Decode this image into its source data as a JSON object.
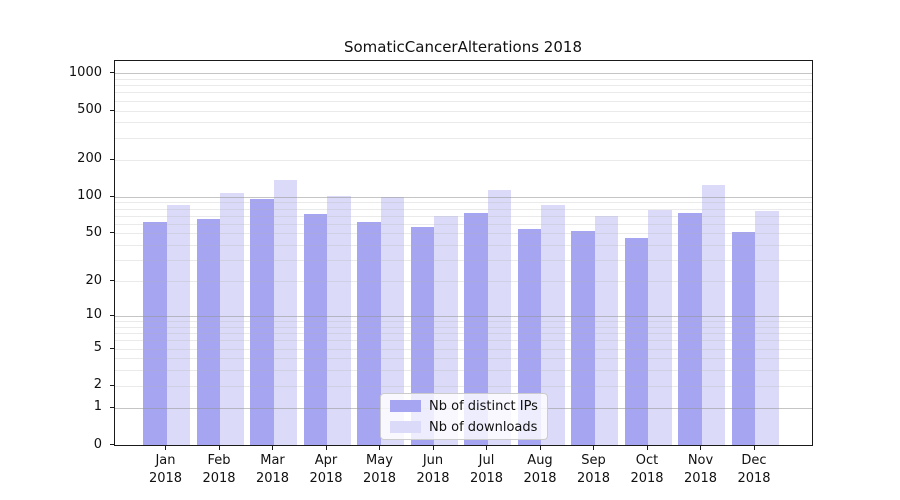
{
  "chart_data": {
    "type": "bar",
    "title": "SomaticCancerAlterations 2018",
    "categories": [
      "Jan",
      "Feb",
      "Mar",
      "Apr",
      "May",
      "Jun",
      "Jul",
      "Aug",
      "Sep",
      "Oct",
      "Nov",
      "Dec"
    ],
    "xtick_year": "2018",
    "series": [
      {
        "name": "Nb of distinct IPs",
        "color": "#a5a5f2",
        "values": [
          62,
          66,
          96,
          72,
          62,
          56,
          73,
          54,
          52,
          46,
          73,
          51
        ]
      },
      {
        "name": "Nb of downloads",
        "color": "#dbdbf9",
        "values": [
          86,
          108,
          136,
          101,
          100,
          70,
          113,
          85,
          70,
          78,
          125,
          76
        ]
      }
    ],
    "yscale": "log1p",
    "ylim": [
      0,
      1268
    ],
    "yticks": [
      0,
      1,
      2,
      5,
      10,
      20,
      50,
      100,
      200,
      500,
      1000
    ],
    "grid": {
      "major": [
        1,
        10,
        100,
        1000
      ],
      "minor": [
        2,
        3,
        4,
        5,
        6,
        7,
        8,
        9,
        20,
        30,
        40,
        50,
        60,
        70,
        80,
        90,
        200,
        300,
        400,
        500,
        600,
        700,
        800,
        900
      ]
    },
    "legend": {
      "position": "lower center",
      "items": [
        "Nb of distinct IPs",
        "Nb of downloads"
      ]
    }
  },
  "colors": {
    "spine": "#1a1a1a",
    "grid_major": "#c5c5c5",
    "grid_minor": "#eaeaea",
    "text": "#111111",
    "background": "#ffffff"
  }
}
